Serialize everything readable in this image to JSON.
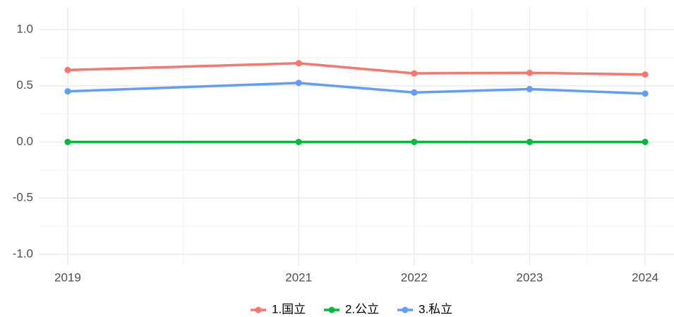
{
  "chart_data": {
    "type": "line",
    "x": [
      2019,
      2021,
      2022,
      2023,
      2024
    ],
    "series": [
      {
        "name": "1.国立",
        "color": "#F8766D",
        "values": [
          0.64,
          0.7,
          0.61,
          0.615,
          0.6
        ]
      },
      {
        "name": "2.公立",
        "color": "#00BA38",
        "values": [
          0,
          0,
          0,
          0,
          0
        ]
      },
      {
        "name": "3.私立",
        "color": "#619CFF",
        "values": [
          0.45,
          0.525,
          0.44,
          0.47,
          0.43
        ]
      }
    ],
    "xlim": [
      2018.75,
      2024.25
    ],
    "xticks": [
      2019,
      2021,
      2022,
      2023,
      2024
    ],
    "ylim": [
      -1.1,
      1.2
    ],
    "yticks": [
      {
        "value": -1,
        "label": "-1.0"
      },
      {
        "value": -0.5,
        "label": "-0.5"
      },
      {
        "value": 0,
        "label": "0.0"
      },
      {
        "value": 0.5,
        "label": "0.5"
      },
      {
        "value": 1,
        "label": "1.0"
      }
    ],
    "grid": true,
    "legend": "bottom"
  }
}
